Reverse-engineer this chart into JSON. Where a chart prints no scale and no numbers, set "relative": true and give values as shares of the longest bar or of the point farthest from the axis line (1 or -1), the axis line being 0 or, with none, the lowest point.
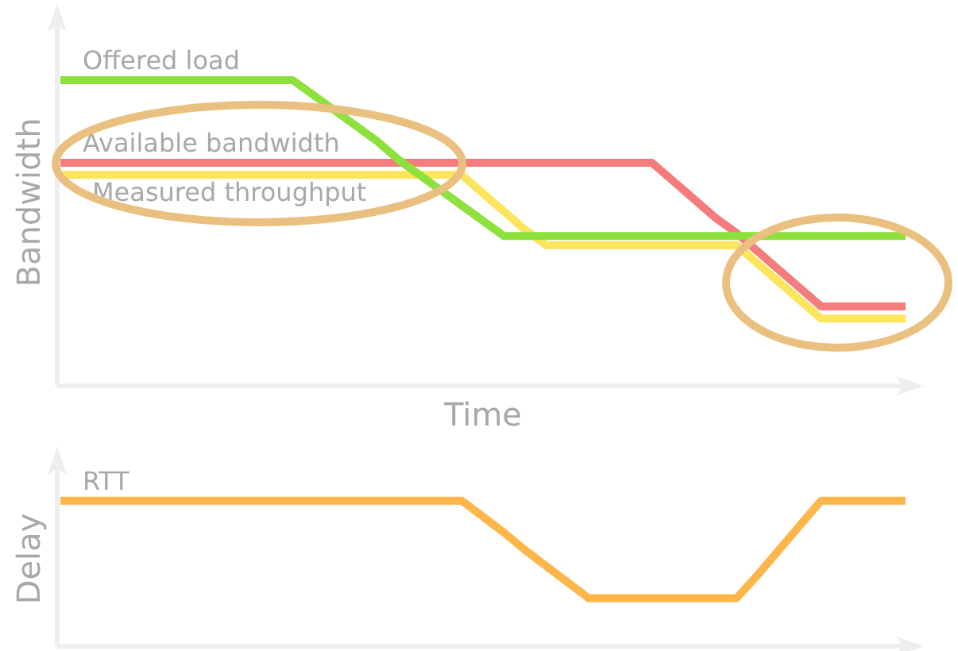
{
  "chart_data": [
    {
      "type": "line",
      "relative": true,
      "xlabel": "Time",
      "ylabel": "Bandwidth",
      "tick_labels": false,
      "grid": false,
      "legend": false,
      "marker": "none",
      "line_style": "solid",
      "categories": [
        null,
        null,
        null,
        null,
        null,
        null,
        null,
        null,
        null,
        null,
        null,
        null,
        null,
        null,
        null,
        null,
        null,
        null,
        null,
        null,
        null,
        null,
        null,
        null,
        null,
        null,
        null,
        null,
        null,
        null,
        null,
        null,
        null,
        null,
        null,
        null,
        null,
        null,
        null,
        null,
        null
      ],
      "series": [
        {
          "name": "Offered load",
          "color": "#8ee03c",
          "values": [
            1,
            1,
            1,
            1,
            1,
            1,
            1,
            1,
            1,
            1,
            1,
            1,
            0.95,
            0.9,
            0.85,
            0.8,
            0.74,
            0.69,
            0.64,
            0.59,
            0.54,
            0.49,
            0.49,
            0.49,
            0.49,
            0.49,
            0.49,
            0.49,
            0.49,
            0.49,
            0.49,
            0.49,
            0.49,
            0.49,
            0.49,
            0.49,
            0.49,
            0.49,
            0.49,
            0.49,
            0.49
          ]
        },
        {
          "name": "Available bandwidth",
          "color": "#f47c7c",
          "values": [
            0.73,
            0.73,
            0.73,
            0.73,
            0.73,
            0.73,
            0.73,
            0.73,
            0.73,
            0.73,
            0.73,
            0.73,
            0.73,
            0.73,
            0.73,
            0.73,
            0.73,
            0.73,
            0.73,
            0.73,
            0.73,
            0.73,
            0.73,
            0.73,
            0.73,
            0.73,
            0.73,
            0.73,
            0.73,
            0.67,
            0.61,
            0.55,
            0.5,
            0.44,
            0.38,
            0.32,
            0.26,
            0.26,
            0.26,
            0.26,
            0.26
          ]
        },
        {
          "name": "Measured throughput",
          "color": "#fce55c",
          "values": [
            0.69,
            0.69,
            0.69,
            0.69,
            0.69,
            0.69,
            0.69,
            0.69,
            0.69,
            0.69,
            0.69,
            0.69,
            0.69,
            0.69,
            0.69,
            0.69,
            0.69,
            0.69,
            0.69,
            0.69,
            0.63,
            0.57,
            0.51,
            0.46,
            0.46,
            0.46,
            0.46,
            0.46,
            0.46,
            0.46,
            0.46,
            0.46,
            0.46,
            0.4,
            0.34,
            0.28,
            0.22,
            0.22,
            0.22,
            0.22,
            0.22
          ]
        }
      ]
    },
    {
      "type": "line",
      "relative": true,
      "ylabel": "Delay",
      "tick_labels": false,
      "grid": false,
      "legend": false,
      "marker": "none",
      "line_style": "solid",
      "categories": [
        null,
        null,
        null,
        null,
        null,
        null,
        null,
        null,
        null,
        null,
        null,
        null,
        null,
        null,
        null,
        null,
        null,
        null,
        null,
        null,
        null,
        null,
        null,
        null,
        null,
        null,
        null,
        null,
        null,
        null,
        null,
        null,
        null,
        null,
        null,
        null,
        null,
        null,
        null,
        null,
        null
      ],
      "series": [
        {
          "name": "RTT",
          "color": "#fdb64a",
          "values": [
            1,
            1,
            1,
            1,
            1,
            1,
            1,
            1,
            1,
            1,
            1,
            1,
            1,
            1,
            1,
            1,
            1,
            1,
            1,
            1,
            0.89,
            0.78,
            0.66,
            0.55,
            0.44,
            0.33,
            0.33,
            0.33,
            0.33,
            0.33,
            0.33,
            0.33,
            0.33,
            0.49,
            0.66,
            0.83,
            1,
            1,
            1,
            1,
            1
          ]
        }
      ]
    }
  ]
}
